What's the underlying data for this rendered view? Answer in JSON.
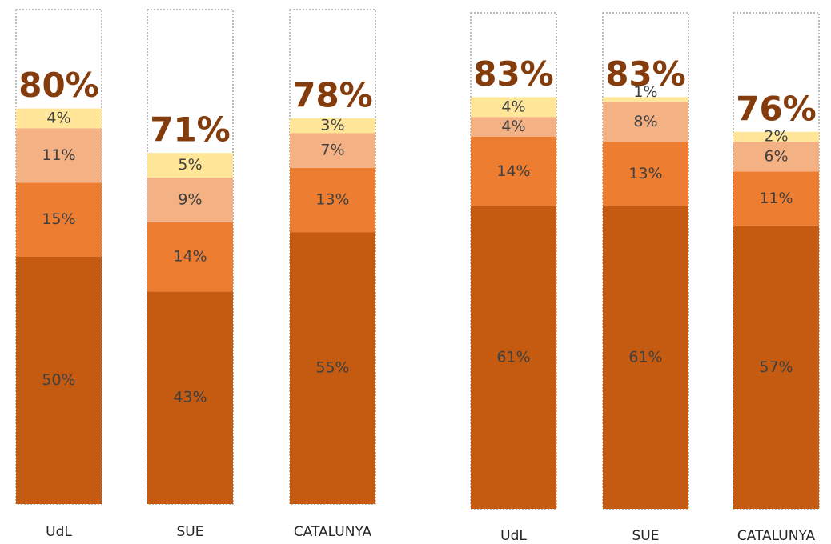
{
  "chart_data": [
    {
      "type": "bar",
      "stacked": true,
      "categories": [
        "UdL",
        "SUE",
        "CATALUNYA"
      ],
      "ylim": [
        0,
        100
      ],
      "series": [
        {
          "color": "#c55a11",
          "values": [
            50,
            43,
            55
          ],
          "value_labels": [
            "50%",
            "43%",
            "55%"
          ]
        },
        {
          "color": "#ed7d31",
          "values": [
            15,
            14,
            13
          ],
          "value_labels": [
            "15%",
            "14%",
            "13%"
          ]
        },
        {
          "color": "#f4b183",
          "values": [
            11,
            9,
            7
          ],
          "value_labels": [
            "11%",
            "9%",
            "7%"
          ]
        },
        {
          "color": "#ffe699",
          "values": [
            4,
            5,
            3
          ],
          "value_labels": [
            "4%",
            "5%",
            "3%"
          ]
        }
      ],
      "totals": [
        80,
        71,
        78
      ],
      "total_labels": [
        "80%",
        "71%",
        "78%"
      ]
    },
    {
      "type": "bar",
      "stacked": true,
      "categories": [
        "UdL",
        "SUE",
        "CATALUNYA"
      ],
      "ylim": [
        0,
        100
      ],
      "series": [
        {
          "color": "#c55a11",
          "values": [
            61,
            61,
            57
          ],
          "value_labels": [
            "61%",
            "61%",
            "57%"
          ]
        },
        {
          "color": "#ed7d31",
          "values": [
            14,
            13,
            11
          ],
          "value_labels": [
            "14%",
            "13%",
            "11%"
          ]
        },
        {
          "color": "#f4b183",
          "values": [
            4,
            8,
            6
          ],
          "value_labels": [
            "4%",
            "8%",
            "6%"
          ]
        },
        {
          "color": "#ffe699",
          "values": [
            4,
            1,
            2
          ],
          "value_labels": [
            "4%",
            "1%",
            "2%"
          ]
        }
      ],
      "totals": [
        83,
        83,
        76
      ],
      "total_labels": [
        "83%",
        "83%",
        "76%"
      ]
    }
  ]
}
